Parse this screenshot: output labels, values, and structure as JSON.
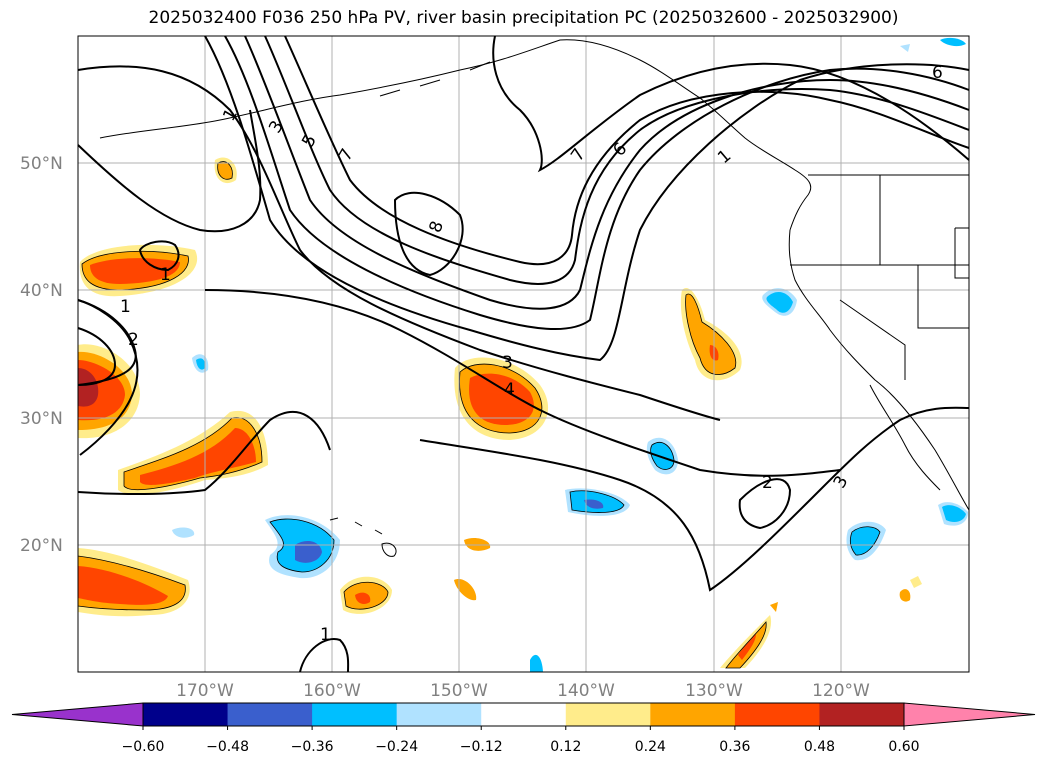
{
  "title": "2025032400 F036 250 hPa PV, river basin precipitation PC (2025032600 - 2025032900)",
  "map": {
    "lat_labels": [
      "50°N",
      "40°N",
      "30°N",
      "20°N"
    ],
    "lon_labels": [
      "170°W",
      "160°W",
      "150°W",
      "140°W",
      "130°W",
      "120°W"
    ],
    "pv_contour_labels": [
      "1",
      "3",
      "5",
      "7",
      "8",
      "7",
      "6",
      "1",
      "1",
      "2",
      "3",
      "4",
      "2",
      "3",
      "1",
      "1",
      "6"
    ]
  },
  "colorbar": {
    "ticks": [
      "−0.60",
      "−0.48",
      "−0.36",
      "−0.24",
      "−0.12",
      "0.12",
      "0.24",
      "0.36",
      "0.48",
      "0.60"
    ],
    "colors": [
      "#9932CC",
      "#00008B",
      "#3A5FCD",
      "#00BFFF",
      "#B0E2FF",
      "#FFFFFF",
      "#FFEC8B",
      "#FFA500",
      "#FF4500",
      "#B22222",
      "#FF82AB"
    ]
  }
}
